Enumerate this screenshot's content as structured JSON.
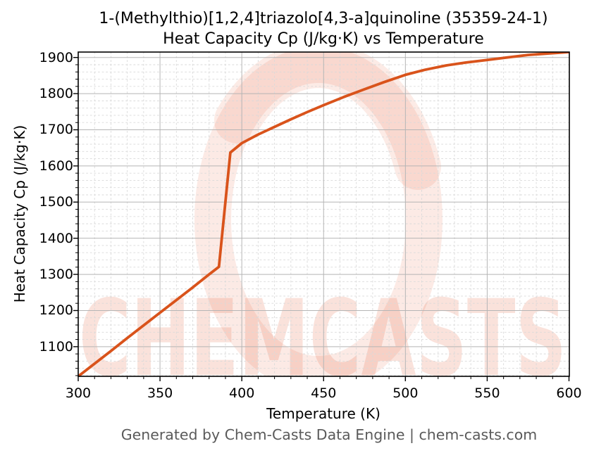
{
  "title": {
    "line1": "1-(Methylthio)[1,2,4]triazolo[4,3-a]quinoline (35359-24-1)",
    "line2": "Heat Capacity Cp (J/kg·K) vs Temperature"
  },
  "footer": "Generated by Chem-Casts Data Engine | chem-casts.com",
  "watermark": {
    "text": "CHEMCASTS",
    "logo": "crescent-c-swirl",
    "color": "#e65c35"
  },
  "chart_data": {
    "type": "line",
    "title": "1-(Methylthio)[1,2,4]triazolo[4,3-a]quinoline (35359-24-1) Heat Capacity Cp (J/kg·K) vs Temperature",
    "xlabel": "Temperature (K)",
    "ylabel": "Heat Capacity Cp (J/kg·K)",
    "xlim": [
      300,
      600
    ],
    "ylim": [
      1018,
      1915
    ],
    "x_ticks": [
      300,
      350,
      400,
      450,
      500,
      550,
      600
    ],
    "y_ticks": [
      1100,
      1200,
      1300,
      1400,
      1500,
      1600,
      1700,
      1800,
      1900
    ],
    "x_minor_step": 10,
    "y_minor_step": 20,
    "grid": true,
    "legend": false,
    "line_color": "#d9531b",
    "series": [
      {
        "points": [
          [
            300,
            1018
          ],
          [
            310,
            1053
          ],
          [
            320,
            1088
          ],
          [
            330,
            1124
          ],
          [
            340,
            1159
          ],
          [
            350,
            1194
          ],
          [
            360,
            1229
          ],
          [
            370,
            1264
          ],
          [
            380,
            1300
          ],
          [
            386,
            1321
          ],
          [
            393,
            1637
          ],
          [
            400,
            1663
          ],
          [
            410,
            1687
          ],
          [
            420,
            1708
          ],
          [
            430,
            1729
          ],
          [
            440,
            1749
          ],
          [
            450,
            1768
          ],
          [
            462,
            1790
          ],
          [
            475,
            1812
          ],
          [
            487,
            1832
          ],
          [
            500,
            1852
          ],
          [
            512,
            1866
          ],
          [
            525,
            1878
          ],
          [
            537,
            1886
          ],
          [
            550,
            1893
          ],
          [
            562,
            1900
          ],
          [
            575,
            1907
          ],
          [
            587,
            1911
          ],
          [
            600,
            1915
          ]
        ]
      }
    ]
  }
}
